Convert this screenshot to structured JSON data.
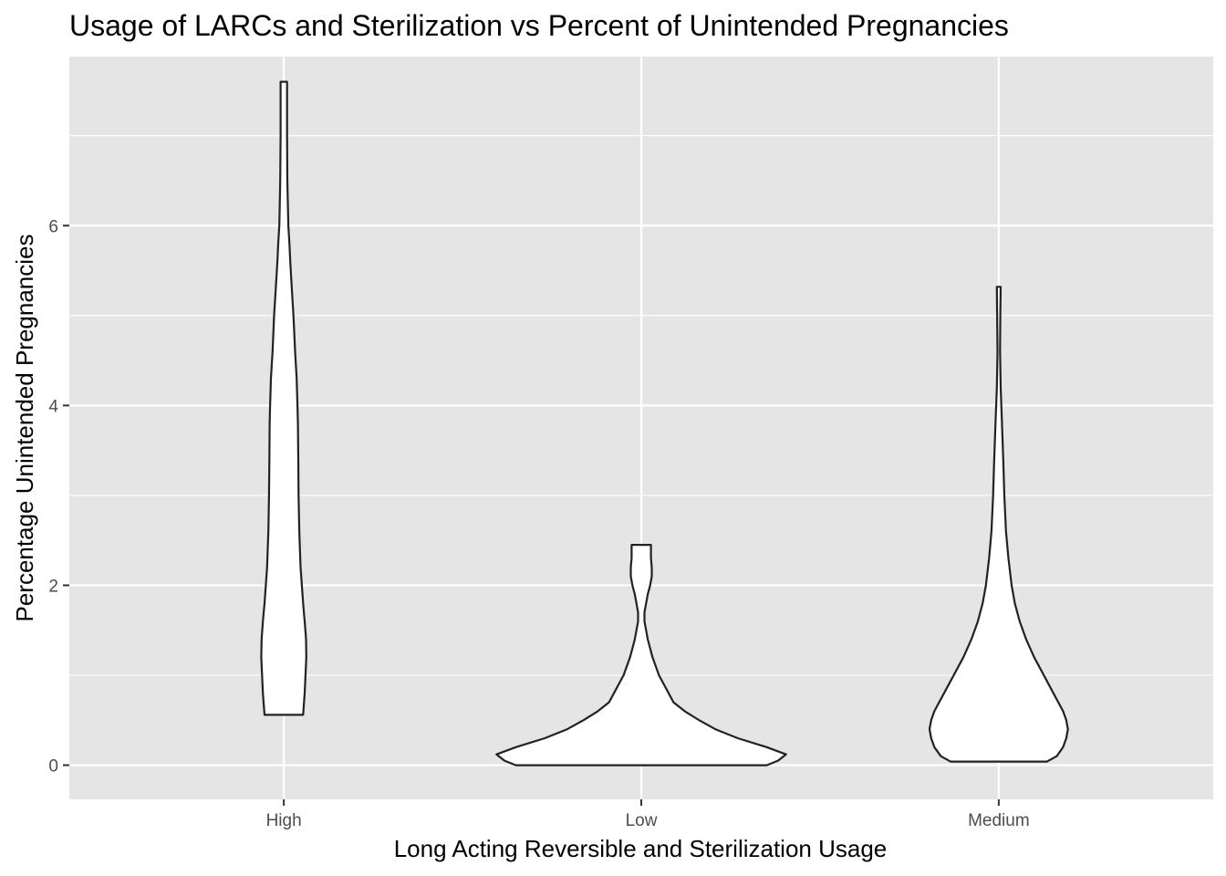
{
  "chart_data": {
    "type": "violin",
    "title": "Usage of LARCs and Sterilization vs Percent of Unintended Pregnancies",
    "xlabel": "Long Acting Reversible and Sterilization Usage",
    "ylabel": "Percentage Unintended Pregnancies",
    "categories": [
      "High",
      "Low",
      "Medium"
    ],
    "ylim": [
      -0.38,
      7.88
    ],
    "yticks": [
      0,
      2,
      4,
      6
    ],
    "grid": true,
    "colors": {
      "panel": "#e5e5e5",
      "grid_major": "#ffffff",
      "violin_fill": "#ffffff",
      "violin_stroke": "#222222",
      "tick_text": "#4d4d4d"
    },
    "violins": [
      {
        "category": "High",
        "y_min": 0.56,
        "y_max": 7.6,
        "profile": [
          [
            0.56,
            0.12
          ],
          [
            0.8,
            0.13
          ],
          [
            1.0,
            0.135
          ],
          [
            1.2,
            0.14
          ],
          [
            1.4,
            0.138
          ],
          [
            1.6,
            0.13
          ],
          [
            1.8,
            0.12
          ],
          [
            2.0,
            0.112
          ],
          [
            2.2,
            0.104
          ],
          [
            2.4,
            0.1
          ],
          [
            2.6,
            0.096
          ],
          [
            3.0,
            0.092
          ],
          [
            3.4,
            0.09
          ],
          [
            3.8,
            0.088
          ],
          [
            4.0,
            0.085
          ],
          [
            4.3,
            0.08
          ],
          [
            4.6,
            0.07
          ],
          [
            5.0,
            0.06
          ],
          [
            5.3,
            0.05
          ],
          [
            5.6,
            0.04
          ],
          [
            5.8,
            0.035
          ],
          [
            6.0,
            0.028
          ],
          [
            6.5,
            0.022
          ],
          [
            7.0,
            0.02
          ],
          [
            7.6,
            0.02
          ]
        ]
      },
      {
        "category": "Low",
        "y_min": 0.0,
        "y_max": 2.45,
        "profile": [
          [
            0.0,
            0.78
          ],
          [
            0.05,
            0.85
          ],
          [
            0.12,
            0.9
          ],
          [
            0.2,
            0.78
          ],
          [
            0.3,
            0.6
          ],
          [
            0.4,
            0.46
          ],
          [
            0.5,
            0.36
          ],
          [
            0.6,
            0.27
          ],
          [
            0.7,
            0.2
          ],
          [
            0.8,
            0.17
          ],
          [
            0.9,
            0.14
          ],
          [
            1.0,
            0.11
          ],
          [
            1.2,
            0.07
          ],
          [
            1.4,
            0.04
          ],
          [
            1.6,
            0.02
          ],
          [
            1.7,
            0.02
          ],
          [
            1.8,
            0.03
          ],
          [
            1.9,
            0.04
          ],
          [
            2.0,
            0.055
          ],
          [
            2.1,
            0.065
          ],
          [
            2.2,
            0.065
          ],
          [
            2.3,
            0.06
          ],
          [
            2.45,
            0.06
          ]
        ]
      },
      {
        "category": "Medium",
        "y_min": 0.04,
        "y_max": 5.32,
        "profile": [
          [
            0.04,
            0.3
          ],
          [
            0.1,
            0.36
          ],
          [
            0.2,
            0.4
          ],
          [
            0.3,
            0.42
          ],
          [
            0.4,
            0.43
          ],
          [
            0.5,
            0.42
          ],
          [
            0.6,
            0.4
          ],
          [
            0.8,
            0.34
          ],
          [
            1.0,
            0.28
          ],
          [
            1.2,
            0.22
          ],
          [
            1.4,
            0.17
          ],
          [
            1.6,
            0.13
          ],
          [
            1.8,
            0.1
          ],
          [
            2.0,
            0.08
          ],
          [
            2.3,
            0.06
          ],
          [
            2.6,
            0.045
          ],
          [
            3.0,
            0.035
          ],
          [
            3.4,
            0.028
          ],
          [
            3.8,
            0.02
          ],
          [
            4.2,
            0.012
          ],
          [
            4.6,
            0.008
          ],
          [
            5.0,
            0.01
          ],
          [
            5.32,
            0.012
          ]
        ]
      }
    ]
  }
}
